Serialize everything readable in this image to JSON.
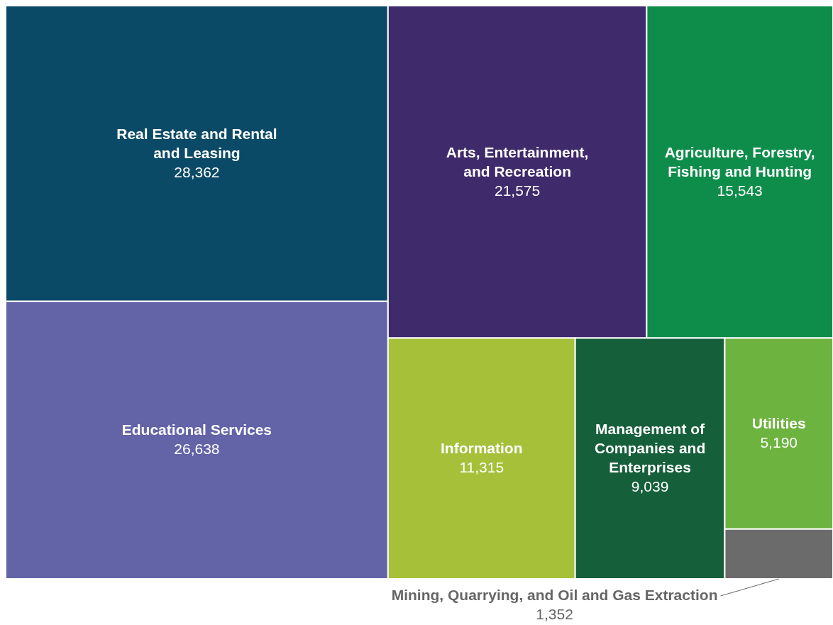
{
  "chart_data": {
    "type": "other",
    "categories": [
      "Real Estate and Rental and Leasing",
      "Educational Services",
      "Arts, Entertainment, and Recreation",
      "Agriculture, Forestry, Fishing and Hunting",
      "Information",
      "Management of Companies and Enterprises",
      "Utilities",
      "Mining, Quarrying, and Oil and Gas Extraction"
    ],
    "values": [
      28362,
      26638,
      21575,
      15543,
      11315,
      9039,
      5190,
      1352
    ],
    "value_labels": [
      "28,362",
      "26,638",
      "21,575",
      "15,543",
      "11,315",
      "9,039",
      "5,190",
      "1,352"
    ],
    "colors": [
      "#0b4a66",
      "#6363a8",
      "#3f2a6b",
      "#0e8c4a",
      "#a6c03a",
      "#155f3a",
      "#6db33f",
      "#6b6b6b"
    ]
  }
}
